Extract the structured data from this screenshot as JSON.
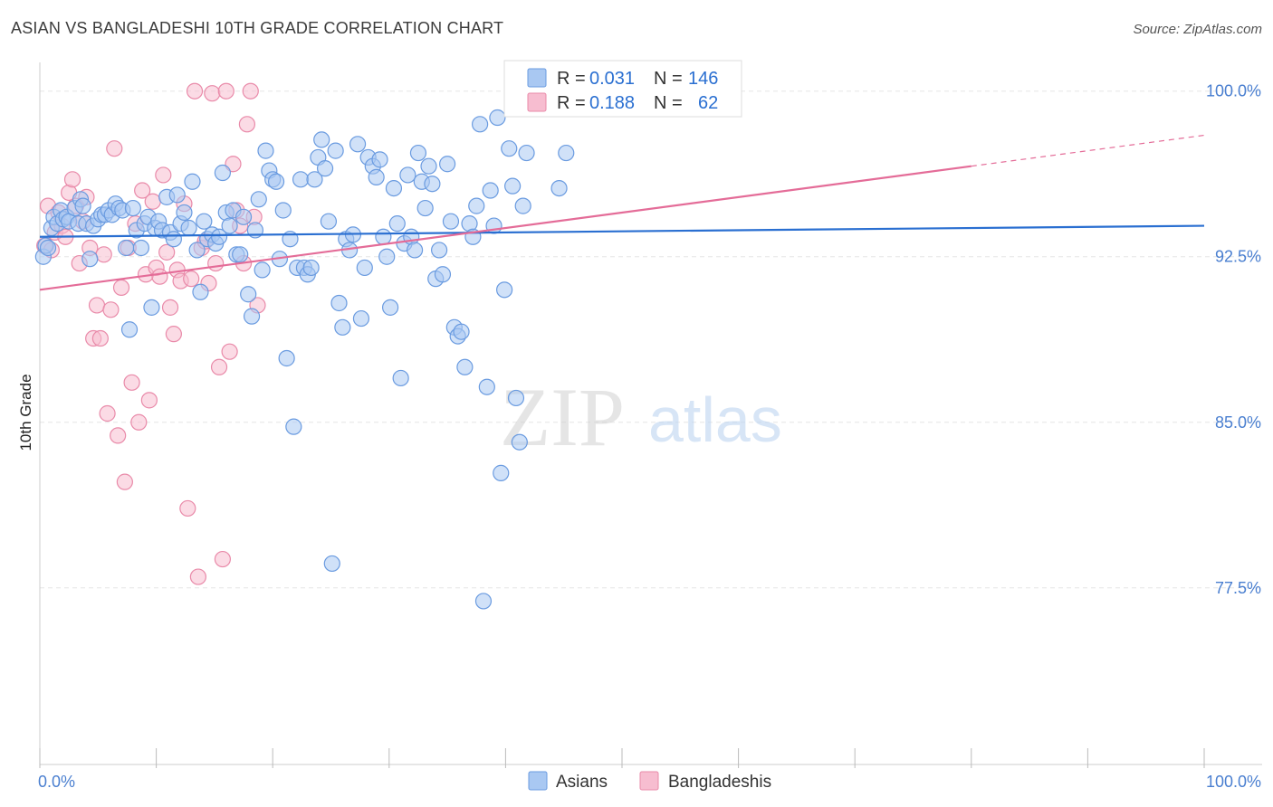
{
  "title": "ASIAN VS BANGLADESHI 10TH GRADE CORRELATION CHART",
  "source": "Source: ZipAtlas.com",
  "watermark": {
    "zip": "ZIP",
    "atlas": "atlas"
  },
  "colors": {
    "asian_fill": "#a9c8f2",
    "asian_stroke": "#6a9be0",
    "asian_line": "#2a6fd1",
    "bangla_fill": "#f7bdd0",
    "bangla_stroke": "#e98aa9",
    "bangla_line": "#e46c98",
    "grid": "#e6e6e6",
    "axis_text": "#4a7fd0"
  },
  "legend": {
    "asian": {
      "r_label": "R =",
      "r_value": "0.031",
      "n_label": "N =",
      "n_value": "146"
    },
    "bangla": {
      "r_label": "R =",
      "r_value": "0.188",
      "n_label": "N =",
      "n_value": "62"
    }
  },
  "chart_data": {
    "type": "scatter",
    "title": "ASIAN VS BANGLADESHI 10TH GRADE CORRELATION CHART",
    "ylabel": "10th Grade",
    "xlabel": "",
    "x_tick_labels": [
      "0.0%",
      "100.0%"
    ],
    "y_tick_labels": [
      "100.0%",
      "92.5%",
      "85.0%",
      "77.5%"
    ],
    "y_ticks": [
      100.0,
      92.5,
      85.0,
      77.5
    ],
    "xlim": [
      0,
      100
    ],
    "ylim": [
      69.5,
      101.3
    ],
    "grid": true,
    "legend_position": "bottom-center",
    "series": [
      {
        "name": "Asians",
        "trend": {
          "x": [
            0,
            100
          ],
          "y": [
            93.4,
            93.9
          ]
        },
        "points": [
          [
            0.3,
            92.5
          ],
          [
            0.5,
            93.0
          ],
          [
            0.7,
            92.9
          ],
          [
            1.0,
            93.8
          ],
          [
            1.2,
            94.3
          ],
          [
            1.5,
            94.0
          ],
          [
            1.8,
            94.6
          ],
          [
            2.0,
            94.2
          ],
          [
            2.3,
            94.3
          ],
          [
            2.5,
            94.1
          ],
          [
            3.0,
            94.7
          ],
          [
            3.3,
            94.0
          ],
          [
            3.5,
            95.1
          ],
          [
            3.7,
            94.8
          ],
          [
            4.0,
            94.0
          ],
          [
            4.3,
            92.4
          ],
          [
            4.6,
            93.9
          ],
          [
            5.0,
            94.2
          ],
          [
            5.3,
            94.4
          ],
          [
            5.6,
            94.4
          ],
          [
            5.9,
            94.6
          ],
          [
            6.2,
            94.4
          ],
          [
            6.5,
            94.9
          ],
          [
            6.8,
            94.7
          ],
          [
            7.1,
            94.6
          ],
          [
            7.4,
            92.9
          ],
          [
            7.7,
            89.2
          ],
          [
            8.0,
            94.7
          ],
          [
            8.3,
            93.7
          ],
          [
            8.7,
            92.9
          ],
          [
            9.0,
            94.0
          ],
          [
            9.3,
            94.3
          ],
          [
            9.6,
            90.2
          ],
          [
            9.9,
            93.8
          ],
          [
            10.2,
            94.1
          ],
          [
            10.5,
            93.7
          ],
          [
            10.9,
            95.2
          ],
          [
            11.2,
            93.6
          ],
          [
            11.5,
            93.3
          ],
          [
            11.8,
            95.3
          ],
          [
            12.1,
            94.0
          ],
          [
            12.4,
            94.5
          ],
          [
            12.8,
            93.8
          ],
          [
            13.1,
            95.9
          ],
          [
            13.5,
            92.8
          ],
          [
            13.8,
            90.9
          ],
          [
            14.1,
            94.1
          ],
          [
            14.4,
            93.3
          ],
          [
            14.8,
            93.5
          ],
          [
            15.1,
            93.1
          ],
          [
            15.4,
            93.4
          ],
          [
            15.7,
            96.3
          ],
          [
            16.0,
            94.5
          ],
          [
            16.3,
            93.9
          ],
          [
            16.6,
            94.6
          ],
          [
            16.9,
            92.6
          ],
          [
            17.2,
            92.6
          ],
          [
            17.5,
            94.3
          ],
          [
            17.9,
            90.8
          ],
          [
            18.2,
            89.8
          ],
          [
            18.5,
            93.7
          ],
          [
            18.8,
            95.1
          ],
          [
            19.1,
            91.9
          ],
          [
            19.4,
            97.3
          ],
          [
            19.7,
            96.4
          ],
          [
            20.0,
            96.0
          ],
          [
            20.3,
            95.9
          ],
          [
            20.6,
            92.4
          ],
          [
            20.9,
            94.6
          ],
          [
            21.2,
            87.9
          ],
          [
            21.5,
            93.3
          ],
          [
            21.8,
            84.8
          ],
          [
            22.1,
            92.0
          ],
          [
            22.4,
            96.0
          ],
          [
            22.7,
            92.0
          ],
          [
            23.0,
            91.7
          ],
          [
            23.3,
            92.0
          ],
          [
            23.6,
            96.0
          ],
          [
            23.9,
            97.0
          ],
          [
            24.2,
            97.8
          ],
          [
            24.5,
            96.5
          ],
          [
            24.8,
            94.1
          ],
          [
            25.1,
            78.6
          ],
          [
            25.4,
            97.3
          ],
          [
            25.7,
            90.4
          ],
          [
            26.0,
            89.3
          ],
          [
            26.3,
            93.3
          ],
          [
            26.6,
            92.8
          ],
          [
            26.9,
            93.5
          ],
          [
            27.3,
            97.6
          ],
          [
            27.6,
            89.7
          ],
          [
            27.9,
            92.0
          ],
          [
            28.2,
            97.0
          ],
          [
            28.6,
            96.6
          ],
          [
            28.9,
            96.1
          ],
          [
            29.2,
            96.9
          ],
          [
            29.5,
            93.4
          ],
          [
            29.8,
            92.5
          ],
          [
            30.1,
            90.2
          ],
          [
            30.4,
            95.6
          ],
          [
            30.7,
            94.0
          ],
          [
            31.0,
            87.0
          ],
          [
            31.3,
            93.1
          ],
          [
            31.6,
            96.2
          ],
          [
            31.9,
            93.4
          ],
          [
            32.2,
            92.8
          ],
          [
            32.5,
            97.2
          ],
          [
            32.8,
            95.9
          ],
          [
            33.1,
            94.7
          ],
          [
            33.4,
            96.6
          ],
          [
            33.7,
            95.8
          ],
          [
            34.0,
            91.5
          ],
          [
            34.3,
            92.8
          ],
          [
            34.6,
            91.7
          ],
          [
            35.0,
            96.7
          ],
          [
            35.3,
            94.1
          ],
          [
            35.6,
            89.3
          ],
          [
            35.9,
            88.9
          ],
          [
            36.2,
            89.1
          ],
          [
            36.5,
            87.5
          ],
          [
            36.9,
            94.0
          ],
          [
            37.2,
            93.4
          ],
          [
            37.5,
            94.8
          ],
          [
            37.8,
            98.5
          ],
          [
            38.1,
            76.9
          ],
          [
            38.4,
            86.6
          ],
          [
            38.7,
            95.5
          ],
          [
            39.0,
            93.9
          ],
          [
            39.3,
            98.8
          ],
          [
            39.6,
            82.7
          ],
          [
            39.9,
            91.0
          ],
          [
            40.3,
            97.4
          ],
          [
            40.6,
            95.7
          ],
          [
            40.9,
            86.1
          ],
          [
            41.2,
            84.1
          ],
          [
            41.5,
            94.8
          ],
          [
            41.8,
            97.2
          ],
          [
            44.6,
            95.6
          ],
          [
            45.2,
            97.2
          ],
          [
            47.4,
            100.0
          ],
          [
            48.7,
            100.0
          ],
          [
            49.3,
            100.0
          ],
          [
            50.1,
            100.0
          ],
          [
            51.1,
            100.0
          ],
          [
            52.7,
            100.0
          ],
          [
            53.5,
            100.0
          ]
        ]
      },
      {
        "name": "Bangladeshis",
        "trend": {
          "x": [
            0,
            80
          ],
          "y": [
            91.0,
            96.6
          ]
        },
        "trend_extension": {
          "x": [
            80,
            100
          ],
          "y": [
            96.6,
            98.0
          ]
        },
        "points": [
          [
            0.4,
            93.0
          ],
          [
            0.7,
            94.8
          ],
          [
            1.0,
            92.8
          ],
          [
            1.3,
            93.6
          ],
          [
            1.6,
            94.5
          ],
          [
            1.9,
            93.9
          ],
          [
            2.2,
            93.4
          ],
          [
            2.5,
            95.4
          ],
          [
            2.8,
            96.0
          ],
          [
            3.1,
            94.8
          ],
          [
            3.4,
            92.2
          ],
          [
            3.7,
            94.1
          ],
          [
            4.0,
            95.2
          ],
          [
            4.3,
            92.9
          ],
          [
            4.6,
            88.8
          ],
          [
            4.9,
            90.3
          ],
          [
            5.2,
            88.8
          ],
          [
            5.5,
            92.6
          ],
          [
            5.8,
            85.4
          ],
          [
            6.1,
            90.1
          ],
          [
            6.4,
            97.4
          ],
          [
            6.7,
            84.4
          ],
          [
            7.0,
            91.1
          ],
          [
            7.3,
            82.3
          ],
          [
            7.6,
            92.9
          ],
          [
            7.9,
            86.8
          ],
          [
            8.2,
            94.0
          ],
          [
            8.5,
            85.0
          ],
          [
            8.8,
            95.5
          ],
          [
            9.1,
            91.7
          ],
          [
            9.4,
            86.0
          ],
          [
            9.7,
            95.0
          ],
          [
            10.0,
            92.0
          ],
          [
            10.3,
            91.6
          ],
          [
            10.6,
            96.2
          ],
          [
            10.9,
            92.7
          ],
          [
            11.2,
            90.2
          ],
          [
            11.5,
            89.0
          ],
          [
            11.8,
            91.9
          ],
          [
            12.1,
            91.4
          ],
          [
            12.4,
            94.9
          ],
          [
            12.7,
            81.1
          ],
          [
            13.0,
            91.5
          ],
          [
            13.3,
            100.0
          ],
          [
            13.6,
            78.0
          ],
          [
            13.9,
            92.9
          ],
          [
            14.2,
            93.2
          ],
          [
            14.5,
            91.3
          ],
          [
            14.8,
            99.9
          ],
          [
            15.1,
            92.2
          ],
          [
            15.4,
            87.5
          ],
          [
            15.7,
            78.8
          ],
          [
            16.0,
            100.0
          ],
          [
            16.3,
            88.2
          ],
          [
            16.6,
            96.7
          ],
          [
            16.9,
            94.6
          ],
          [
            17.2,
            93.9
          ],
          [
            17.5,
            92.2
          ],
          [
            17.8,
            98.5
          ],
          [
            18.1,
            100.0
          ],
          [
            18.4,
            94.3
          ],
          [
            18.7,
            90.3
          ]
        ]
      }
    ]
  }
}
